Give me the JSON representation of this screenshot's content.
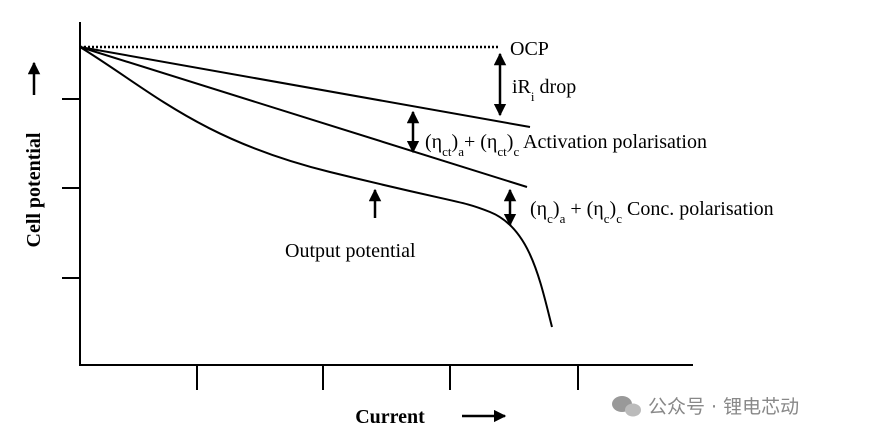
{
  "axes": {
    "y_label": "Cell potential",
    "x_label": "Current"
  },
  "labels": {
    "ocp": "OCP",
    "ir_drop": [
      "iR",
      "i",
      " drop"
    ],
    "activation": [
      "(η",
      "ct",
      ")",
      "a",
      "+ (η",
      "ct",
      ")",
      "c",
      " Activation polarisation"
    ],
    "concentration": [
      "(η",
      "c",
      ")",
      "a",
      " + (η",
      "c",
      ")",
      "c",
      " Conc. polarisation"
    ],
    "output": "Output potential"
  },
  "watermark": "公众号 · 锂电芯动"
}
